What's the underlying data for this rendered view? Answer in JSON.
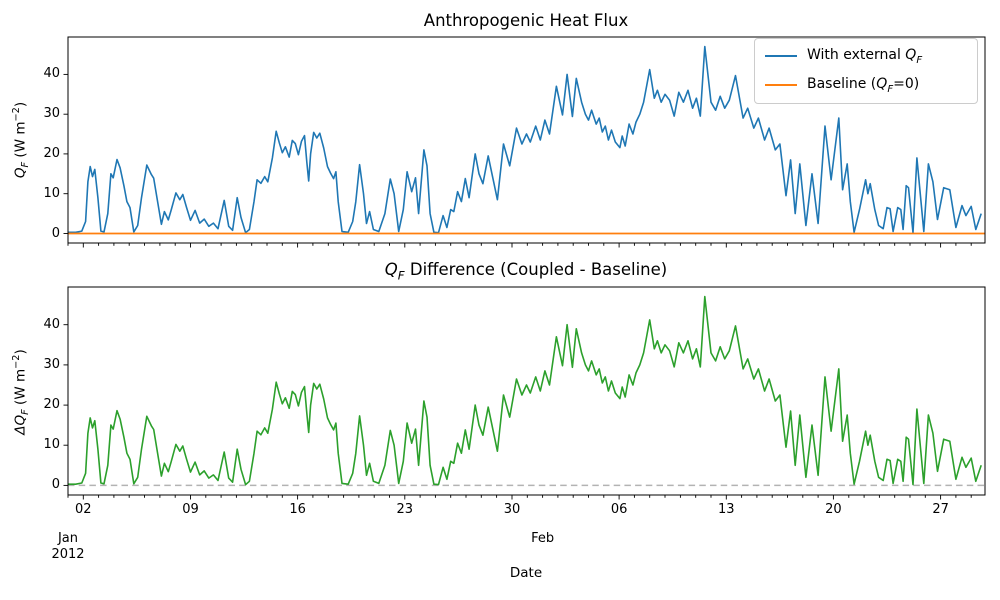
{
  "figure": {
    "background": "#ffffff",
    "text_color": "#000000"
  },
  "chart_data": {
    "type": "line",
    "xlabel": "Date",
    "x_axis": {
      "unit": "days since 2012-01-01",
      "range_days": [
        0,
        59.9
      ],
      "minor_tick_every_days": 1,
      "major_ticks": [
        {
          "t": 1,
          "label": "02"
        },
        {
          "t": 8,
          "label": "09"
        },
        {
          "t": 15,
          "label": "16"
        },
        {
          "t": 22,
          "label": "23"
        },
        {
          "t": 29,
          "label": "30"
        },
        {
          "t": 36,
          "label": "06"
        },
        {
          "t": 43,
          "label": "13"
        },
        {
          "t": 50,
          "label": "20"
        },
        {
          "t": 57,
          "label": "27"
        }
      ],
      "start_label": {
        "month": "Jan",
        "year": "2012",
        "t": 0
      },
      "feb_label": {
        "month": "Feb",
        "t": 31
      }
    },
    "y_ticks": [
      0,
      10,
      20,
      30,
      40
    ],
    "ylim": [
      -2.4,
      49.4
    ],
    "grid": false,
    "panels": [
      {
        "title": "Anthropogenic Heat Flux",
        "ylabel": "$Q_F$ (W m$^{-2}$)",
        "legend": {
          "location": "upper right",
          "entries": [
            {
              "label": "With external $Q_F$",
              "color": "#1f77b4"
            },
            {
              "label": "Baseline ($Q_F$=0)",
              "color": "#ff7f0e"
            }
          ]
        },
        "series": [
          {
            "name": "With external $Q_F$",
            "color": "#1f77b4",
            "points": "coupled"
          },
          {
            "name": "Baseline ($Q_F$=0)",
            "color": "#ff7f0e",
            "constant_value": 0
          }
        ]
      },
      {
        "title": "$Q_F$ Difference (Coupled - Baseline)",
        "ylabel": "$\\Delta Q_F$ (W m$^{-2}$)",
        "series": [
          {
            "name": "$Q_F$ difference",
            "color": "#2ca02c",
            "points": "coupled"
          }
        ],
        "zero_line": {
          "value": 0,
          "color": "#b3b3b3",
          "style": "dashed"
        }
      }
    ],
    "series_points": {
      "t": [
        0,
        0.5,
        0.9,
        1.15,
        1.3,
        1.45,
        1.6,
        1.75,
        1.95,
        2.15,
        2.35,
        2.6,
        2.8,
        2.95,
        3.2,
        3.4,
        3.65,
        3.85,
        4.05,
        4.3,
        4.55,
        4.8,
        5.15,
        5.45,
        5.6,
        5.85,
        6.1,
        6.3,
        6.55,
        6.75,
        7.05,
        7.3,
        7.5,
        7.75,
        8,
        8.3,
        8.6,
        8.9,
        9.2,
        9.5,
        9.8,
        10.2,
        10.5,
        10.75,
        11.05,
        11.3,
        11.6,
        11.85,
        12.15,
        12.35,
        12.6,
        12.85,
        13.05,
        13.35,
        13.6,
        13.8,
        14,
        14.2,
        14.45,
        14.65,
        14.85,
        15.05,
        15.25,
        15.45,
        15.6,
        15.72,
        15.85,
        16.05,
        16.25,
        16.45,
        16.7,
        16.95,
        17.15,
        17.35,
        17.5,
        17.65,
        17.9,
        18.3,
        18.6,
        18.8,
        19.05,
        19.3,
        19.5,
        19.7,
        19.95,
        20.3,
        20.7,
        21.05,
        21.3,
        21.6,
        21.9,
        22.15,
        22.45,
        22.7,
        22.9,
        23.25,
        23.45,
        23.65,
        23.9,
        24.2,
        24.5,
        24.75,
        25,
        25.2,
        25.45,
        25.7,
        25.95,
        26.2,
        26.6,
        26.85,
        27.1,
        27.45,
        27.75,
        28.05,
        28.45,
        28.85,
        29.3,
        29.65,
        29.95,
        30.2,
        30.55,
        30.85,
        31.15,
        31.45,
        31.9,
        32.3,
        32.6,
        32.95,
        33.2,
        33.55,
        33.8,
        34,
        34.2,
        34.5,
        34.7,
        34.9,
        35.1,
        35.3,
        35.5,
        35.75,
        36.05,
        36.2,
        36.4,
        36.65,
        36.9,
        37.1,
        37.35,
        37.6,
        38,
        38.3,
        38.5,
        38.75,
        39,
        39.3,
        39.6,
        39.9,
        40.2,
        40.5,
        40.8,
        41.05,
        41.3,
        41.6,
        42,
        42.3,
        42.6,
        42.9,
        43.2,
        43.6,
        44.1,
        44.4,
        44.8,
        45.1,
        45.5,
        45.8,
        46.2,
        46.5,
        46.9,
        47.2,
        47.5,
        47.8,
        48.2,
        48.6,
        49,
        49.45,
        49.85,
        50.35,
        50.6,
        50.9,
        51.1,
        51.35,
        51.7,
        52.1,
        52.25,
        52.4,
        52.7,
        52.95,
        53.25,
        53.5,
        53.7,
        53.9,
        54.2,
        54.4,
        54.55,
        54.75,
        54.9,
        55.2,
        55.45,
        55.9,
        56.2,
        56.5,
        56.8,
        57.2,
        57.6,
        58,
        58.4,
        58.65,
        59,
        59.3,
        59.65
      ],
      "coupled": [
        0.3,
        0.3,
        0.6,
        3,
        13,
        16.8,
        14.3,
        16.1,
        9,
        0.6,
        0.4,
        5,
        15,
        14,
        18.6,
        16.5,
        12,
        8,
        6.5,
        0.4,
        2,
        9,
        17.2,
        14.8,
        13.9,
        8,
        2.3,
        5.5,
        3.4,
        6,
        10.2,
        8.5,
        9.8,
        6.5,
        3.3,
        5.8,
        2.6,
        3.6,
        1.8,
        2.6,
        1.2,
        8.3,
        1.8,
        0.8,
        9,
        4,
        0.2,
        1,
        8,
        13.5,
        12.6,
        14.3,
        13,
        19,
        25.7,
        22.8,
        20.3,
        21.8,
        19.2,
        23.4,
        22.6,
        19.8,
        23.2,
        24.6,
        18,
        13.2,
        20,
        25.4,
        24,
        25.2,
        21.5,
        16.8,
        15.2,
        13.8,
        15.5,
        8,
        0.5,
        0.3,
        3,
        8,
        17.3,
        10,
        2.5,
        5.5,
        1,
        0.5,
        5,
        13.7,
        10,
        0.5,
        6,
        15.5,
        10.5,
        14,
        5,
        21,
        17,
        5,
        0.3,
        0.2,
        4.5,
        1.5,
        6,
        5.5,
        10.5,
        8,
        13.8,
        9,
        20,
        15,
        12.5,
        19.5,
        14,
        8.5,
        22.5,
        17,
        26.5,
        22.5,
        25,
        23,
        27,
        23.5,
        28.5,
        25,
        37,
        29.8,
        40,
        29.4,
        39,
        33,
        30,
        28.5,
        31,
        27.5,
        29,
        25.5,
        27,
        23.5,
        26,
        23,
        21.6,
        24.5,
        22,
        27.5,
        25,
        28,
        30,
        33,
        41.2,
        34,
        36,
        33,
        35,
        33.5,
        29.5,
        35.5,
        33,
        36,
        31.5,
        34,
        29.5,
        47,
        33,
        31,
        34.5,
        31.5,
        33.5,
        39.7,
        29,
        31.5,
        26.5,
        29,
        23.5,
        26.5,
        21,
        22.5,
        9.5,
        18.5,
        5,
        17.5,
        2,
        15,
        2.5,
        27,
        13.5,
        29,
        11,
        17.5,
        8,
        0.3,
        6,
        13.5,
        10,
        12.5,
        6,
        2,
        1.2,
        6.5,
        6.2,
        0.5,
        6.5,
        6,
        1,
        12,
        11.5,
        0.2,
        19,
        0.5,
        17.5,
        13,
        3.5,
        11.5,
        11,
        1.5,
        7,
        4.5,
        6.8,
        1,
        5
      ]
    }
  }
}
